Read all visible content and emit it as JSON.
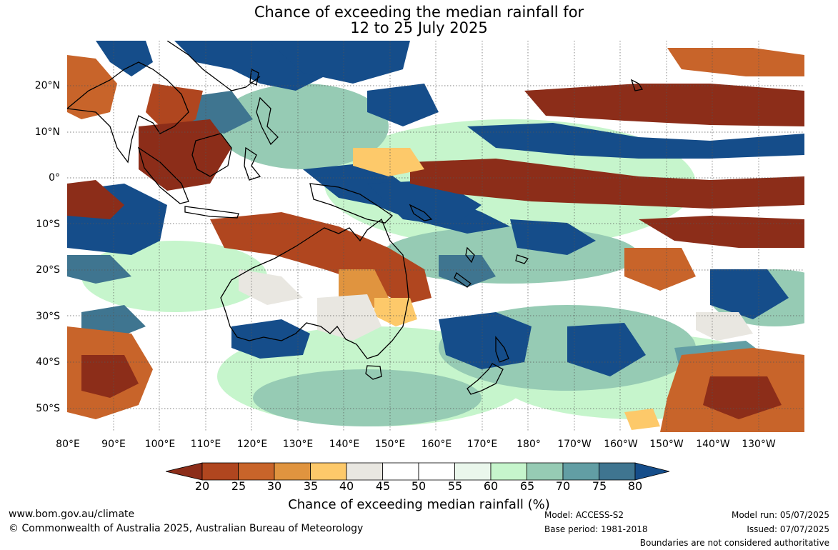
{
  "title": {
    "line1": "Chance of exceeding the median rainfall for",
    "line2": "12 to 25 July 2025"
  },
  "map": {
    "lat_labels": [
      "20°N",
      "10°N",
      "0°",
      "10°S",
      "20°S",
      "30°S",
      "40°S",
      "50°S"
    ],
    "lon_labels": [
      "80°E",
      "90°E",
      "100°E",
      "110°E",
      "120°E",
      "130°E",
      "140°E",
      "150°E",
      "160°E",
      "170°E",
      "180°",
      "170°W",
      "160°W",
      "150°W",
      "140°W",
      "130°W"
    ],
    "gridlines": "dotted"
  },
  "colorbar": {
    "ticks": [
      "20",
      "25",
      "30",
      "35",
      "40",
      "45",
      "50",
      "55",
      "60",
      "65",
      "70",
      "75",
      "80"
    ],
    "colors": [
      "#8c2d19",
      "#b0461f",
      "#c8642a",
      "#e0943f",
      "#fdc96a",
      "#e9e7e1",
      "#ffffff",
      "#ffffff",
      "#eaf7ec",
      "#c6f5cc",
      "#96cbb4",
      "#629ea4",
      "#3f7590",
      "#154d8a"
    ],
    "label": "Chance of exceeding median rainfall (%)"
  },
  "footer": {
    "website": "www.bom.gov.au/climate",
    "copyright": "© Commonwealth of Australia 2025, Australian Bureau of Meteorology",
    "model": "Model: ACCESS-S2",
    "base_period": "Base period: 1981-2018",
    "model_run": "Model run: 05/07/2025",
    "issued": "Issued: 07/07/2025",
    "disclaimer": "Boundaries are not considered authoritative"
  }
}
